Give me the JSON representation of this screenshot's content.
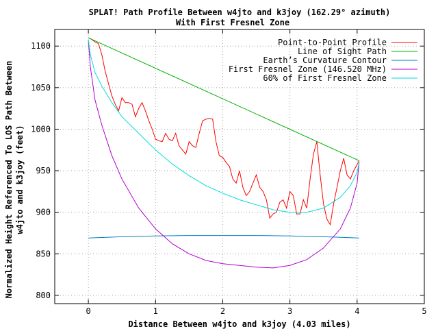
{
  "chart_data": {
    "type": "line",
    "title": "SPLAT! Path Profile Between w4jto and k3joy (162.29° azimuth)",
    "subtitle": "With First Fresnel Zone",
    "xlabel": "Distance Between w4jto and k3joy (4.03 miles)",
    "ylabel": [
      "Normalized Height Referenced To LOS Path Between",
      "w4jto and k3joy (feet)"
    ],
    "xlim": [
      -0.5,
      5
    ],
    "ylim": [
      790,
      1120
    ],
    "xticks": [
      0,
      1,
      2,
      3,
      4,
      5
    ],
    "xtick_labels": [
      "0",
      "1",
      "2",
      "3",
      "4",
      "5"
    ],
    "yticks": [
      800,
      850,
      900,
      950,
      1000,
      1050,
      1100
    ],
    "ytick_labels": [
      "800",
      "850",
      "900",
      "950",
      "1000",
      "1050",
      "1100"
    ],
    "grid": true,
    "legend_position": "top-right",
    "series": [
      {
        "name": "Point-to-Point Profile",
        "color": "#ff0000",
        "x": [
          0.0,
          0.05,
          0.1,
          0.15,
          0.2,
          0.25,
          0.3,
          0.35,
          0.4,
          0.45,
          0.5,
          0.55,
          0.6,
          0.65,
          0.7,
          0.75,
          0.8,
          0.85,
          0.9,
          0.95,
          1.0,
          1.05,
          1.1,
          1.15,
          1.2,
          1.25,
          1.3,
          1.35,
          1.4,
          1.45,
          1.5,
          1.55,
          1.6,
          1.65,
          1.7,
          1.75,
          1.8,
          1.85,
          1.9,
          1.95,
          2.0,
          2.05,
          2.1,
          2.15,
          2.2,
          2.25,
          2.3,
          2.35,
          2.4,
          2.45,
          2.5,
          2.55,
          2.6,
          2.65,
          2.7,
          2.75,
          2.8,
          2.85,
          2.9,
          2.95,
          3.0,
          3.05,
          3.1,
          3.15,
          3.2,
          3.25,
          3.3,
          3.35,
          3.4,
          3.45,
          3.5,
          3.55,
          3.6,
          3.65,
          3.7,
          3.75,
          3.8,
          3.85,
          3.9,
          3.95,
          4.03
        ],
        "y": [
          1110,
          1108,
          1105,
          1103,
          1090,
          1070,
          1055,
          1040,
          1030,
          1022,
          1038,
          1032,
          1032,
          1030,
          1015,
          1025,
          1032,
          1022,
          1010,
          1000,
          988,
          986,
          985,
          995,
          988,
          986,
          995,
          980,
          975,
          970,
          985,
          980,
          978,
          995,
          1010,
          1012,
          1013,
          1012,
          985,
          968,
          966,
          960,
          955,
          940,
          935,
          950,
          930,
          920,
          925,
          935,
          945,
          930,
          925,
          915,
          893,
          898,
          900,
          912,
          915,
          905,
          925,
          920,
          898,
          898,
          915,
          905,
          940,
          970,
          985,
          945,
          910,
          892,
          885,
          910,
          930,
          950,
          965,
          945,
          940,
          950,
          962
        ],
        "labels": false
      },
      {
        "name": "Line of Sight Path",
        "color": "#00b000",
        "x": [
          0.0,
          4.03
        ],
        "y": [
          1110,
          962
        ]
      },
      {
        "name": "Earth’s Curvature Contour",
        "color": "#0080c0",
        "x": [
          0.0,
          0.5,
          1.0,
          1.5,
          2.0,
          2.5,
          3.0,
          3.5,
          4.03
        ],
        "y": [
          869,
          870.5,
          871.5,
          872,
          872,
          872,
          871.5,
          870.5,
          869
        ]
      },
      {
        "name": "First Fresnel Zone (146.520 MHz)",
        "color": "#b000d0",
        "x": [
          0.0,
          0.03,
          0.1,
          0.2,
          0.35,
          0.5,
          0.75,
          1.0,
          1.25,
          1.5,
          1.75,
          2.0,
          2.25,
          2.5,
          2.75,
          3.0,
          3.25,
          3.5,
          3.75,
          3.9,
          4.0,
          4.03
        ],
        "y": [
          1107,
          1075,
          1035,
          1005,
          968,
          940,
          905,
          880,
          862,
          850,
          842,
          838,
          836,
          834,
          833,
          836,
          843,
          857,
          880,
          905,
          935,
          960
        ]
      },
      {
        "name": "60% of First Fresnel Zone",
        "color": "#00dcdc",
        "x": [
          0.0,
          0.03,
          0.1,
          0.2,
          0.35,
          0.5,
          0.75,
          1.0,
          1.25,
          1.5,
          1.75,
          2.0,
          2.25,
          2.5,
          2.75,
          3.0,
          3.25,
          3.5,
          3.75,
          3.9,
          4.0,
          4.03
        ],
        "y": [
          1108,
          1090,
          1068,
          1052,
          1032,
          1015,
          995,
          975,
          958,
          944,
          932,
          923,
          915,
          909,
          903,
          900,
          900,
          905,
          918,
          932,
          948,
          960
        ]
      }
    ]
  }
}
